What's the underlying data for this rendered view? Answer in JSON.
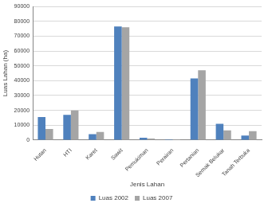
{
  "chart_data": {
    "type": "bar",
    "x_label": "Jenis Lahan",
    "y_label": "Luas Lahan (ha)",
    "categories": [
      "Hutan",
      "HTI",
      "Karet",
      "Sawit",
      "Pemukiman",
      "Perairan",
      "Pertanian",
      "Semak Belukar",
      "Tanah Terbuka"
    ],
    "series": [
      {
        "name": "Luas 2002",
        "color": "#4f81bd",
        "values": [
          15500,
          17000,
          4000,
          76500,
          1500,
          500,
          41500,
          11000,
          3000
        ]
      },
      {
        "name": "Luas 2007",
        "color": "#a5a5a5",
        "values": [
          7500,
          20000,
          5500,
          76000,
          1000,
          500,
          47000,
          6500,
          6000
        ]
      }
    ],
    "ylim": [
      0,
      90000
    ],
    "yticks": [
      0,
      10000,
      20000,
      30000,
      40000,
      50000,
      60000,
      70000,
      80000,
      90000
    ],
    "grid": true,
    "legend": "bottom"
  }
}
